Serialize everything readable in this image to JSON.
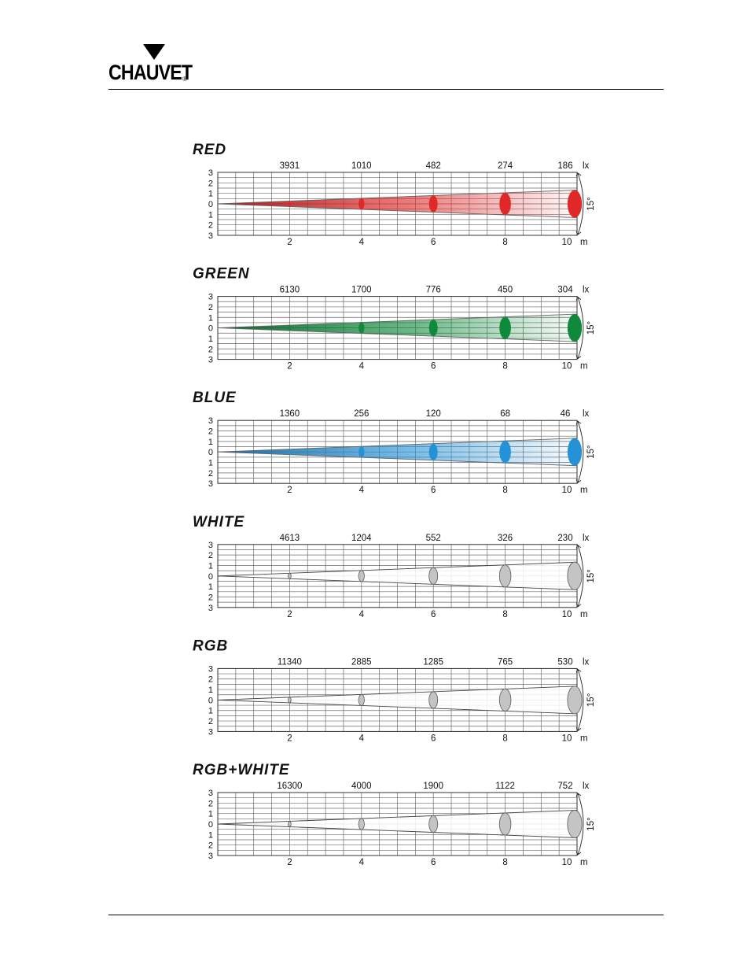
{
  "header": {
    "brand": "CHAUVET",
    "registered": "®"
  },
  "chart_data": [
    {
      "type": "line",
      "title": "RED",
      "color": "#e02828",
      "illuminance_unit": "lx",
      "distance_unit": "m",
      "beam_angle_label": "15°",
      "x_ticks": [
        "2",
        "4",
        "6",
        "8",
        "10"
      ],
      "y_ticks": [
        "3",
        "2",
        "1",
        "0",
        "1",
        "2",
        "3"
      ],
      "ylim": [
        -3,
        3
      ],
      "xlim": [
        0,
        10
      ],
      "grid": true,
      "series": [
        {
          "x": [
            2,
            4,
            6,
            8,
            10
          ],
          "values": [
            3931,
            1010,
            482,
            274,
            186
          ]
        }
      ],
      "value_labels": [
        "3931",
        "1010",
        "482",
        "274",
        "186"
      ]
    },
    {
      "type": "line",
      "title": "GREEN",
      "color": "#0f8a3a",
      "illuminance_unit": "lx",
      "distance_unit": "m",
      "beam_angle_label": "15°",
      "x_ticks": [
        "2",
        "4",
        "6",
        "8",
        "10"
      ],
      "y_ticks": [
        "3",
        "2",
        "1",
        "0",
        "1",
        "2",
        "3"
      ],
      "ylim": [
        -3,
        3
      ],
      "xlim": [
        0,
        10
      ],
      "grid": true,
      "series": [
        {
          "x": [
            2,
            4,
            6,
            8,
            10
          ],
          "values": [
            6130,
            1700,
            776,
            450,
            304
          ]
        }
      ],
      "value_labels": [
        "6130",
        "1700",
        "776",
        "450",
        "304"
      ]
    },
    {
      "type": "line",
      "title": "BLUE",
      "color": "#2591d6",
      "illuminance_unit": "lx",
      "distance_unit": "m",
      "beam_angle_label": "15°",
      "x_ticks": [
        "2",
        "4",
        "6",
        "8",
        "10"
      ],
      "y_ticks": [
        "3",
        "2",
        "1",
        "0",
        "1",
        "2",
        "3"
      ],
      "ylim": [
        -3,
        3
      ],
      "xlim": [
        0,
        10
      ],
      "grid": true,
      "series": [
        {
          "x": [
            2,
            4,
            6,
            8,
            10
          ],
          "values": [
            1360,
            256,
            120,
            68,
            46
          ]
        }
      ],
      "value_labels": [
        "1360",
        "256",
        "120",
        "68",
        "46"
      ]
    },
    {
      "type": "line",
      "title": "WHITE",
      "color": "#c4c4c4",
      "illuminance_unit": "lx",
      "distance_unit": "m",
      "beam_angle_label": "15°",
      "x_ticks": [
        "2",
        "4",
        "6",
        "8",
        "10"
      ],
      "y_ticks": [
        "3",
        "2",
        "1",
        "0",
        "1",
        "2",
        "3"
      ],
      "ylim": [
        -3,
        3
      ],
      "xlim": [
        0,
        10
      ],
      "grid": true,
      "series": [
        {
          "x": [
            2,
            4,
            6,
            8,
            10
          ],
          "values": [
            4613,
            1204,
            552,
            326,
            230
          ]
        }
      ],
      "value_labels": [
        "4613",
        "1204",
        "552",
        "326",
        "230"
      ]
    },
    {
      "type": "line",
      "title": "RGB",
      "color": "#c4c4c4",
      "illuminance_unit": "lx",
      "distance_unit": "m",
      "beam_angle_label": "15°",
      "x_ticks": [
        "2",
        "4",
        "6",
        "8",
        "10"
      ],
      "y_ticks": [
        "3",
        "2",
        "1",
        "0",
        "1",
        "2",
        "3"
      ],
      "ylim": [
        -3,
        3
      ],
      "xlim": [
        0,
        10
      ],
      "grid": true,
      "series": [
        {
          "x": [
            2,
            4,
            6,
            8,
            10
          ],
          "values": [
            11340,
            2885,
            1285,
            765,
            530
          ]
        }
      ],
      "value_labels": [
        "11340",
        "2885",
        "1285",
        "765",
        "530"
      ]
    },
    {
      "type": "line",
      "title": "RGB+WHITE",
      "color": "#c4c4c4",
      "illuminance_unit": "lx",
      "distance_unit": "m",
      "beam_angle_label": "15°",
      "x_ticks": [
        "2",
        "4",
        "6",
        "8",
        "10"
      ],
      "y_ticks": [
        "3",
        "2",
        "1",
        "0",
        "1",
        "2",
        "3"
      ],
      "ylim": [
        -3,
        3
      ],
      "xlim": [
        0,
        10
      ],
      "grid": true,
      "series": [
        {
          "x": [
            2,
            4,
            6,
            8,
            10
          ],
          "values": [
            16300,
            4000,
            1900,
            1122,
            752
          ]
        }
      ],
      "value_labels": [
        "16300",
        "4000",
        "1900",
        "1122",
        "752"
      ]
    }
  ]
}
